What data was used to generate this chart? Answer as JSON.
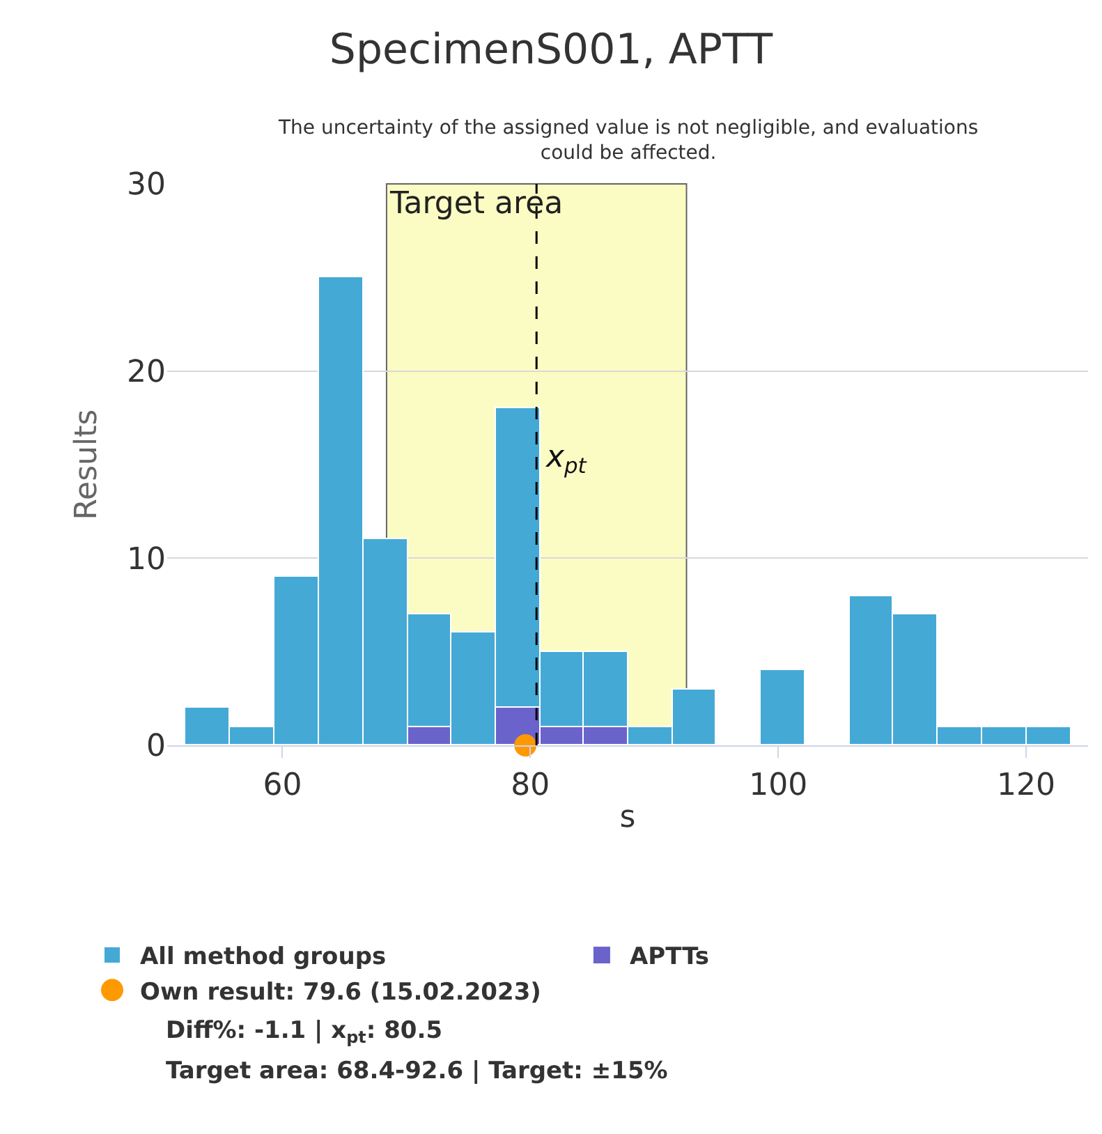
{
  "chart_data": {
    "type": "histogram",
    "title": "SpecimenS001, APTT",
    "subtitle": "The uncertainty of the assigned value is not negligible, and evaluations could be affected.",
    "xlabel": "s",
    "ylabel": "Results",
    "bins": [
      52.2,
      55.8,
      59.3,
      62.9,
      66.5,
      70.1,
      73.6,
      77.2,
      80.8,
      84.3,
      87.9,
      91.5,
      95.0,
      98.6,
      102.2,
      105.8,
      109.3,
      112.9,
      116.5,
      120.0,
      123.6
    ],
    "series": [
      {
        "name": "All method groups",
        "color": "#45a9d6",
        "values": [
          2,
          1,
          9,
          25,
          11,
          7,
          6,
          18,
          5,
          5,
          1,
          3,
          0,
          4,
          0,
          8,
          7,
          1,
          1,
          1
        ]
      },
      {
        "name": "APTTs",
        "color": "#6a63cc",
        "values": [
          0,
          0,
          0,
          0,
          0,
          1,
          0,
          2,
          1,
          1,
          0,
          0,
          0,
          0,
          0,
          0,
          0,
          0,
          0,
          0
        ]
      },
      {
        "name": "Own result: 79.6 (15.02.2023)",
        "type": "scatter",
        "marker": "circle",
        "color": "#ff9900",
        "x": [
          79.6
        ],
        "values": [
          0
        ]
      }
    ],
    "bands": [
      {
        "axis": "x",
        "from": 68.4,
        "to": 92.6,
        "label": "Target area",
        "color": "#fbfcc4"
      }
    ],
    "ref_lines": [
      {
        "axis": "x",
        "value": 80.5,
        "label": "x$_{pt}$",
        "color": "#000000",
        "line_style": "dashed"
      }
    ],
    "annotations": [
      "Diff%: -1.1 | x$_{pt}$: 80.5",
      "Target area: 68.4-92.6 | Target: ±15%"
    ],
    "xlim": [
      50.7,
      125
    ],
    "xticks": [
      60,
      80,
      100,
      120
    ],
    "ylim": [
      0,
      30
    ],
    "yticks": [
      0,
      10,
      20,
      30
    ],
    "grid": "y",
    "legend": "bottom"
  }
}
